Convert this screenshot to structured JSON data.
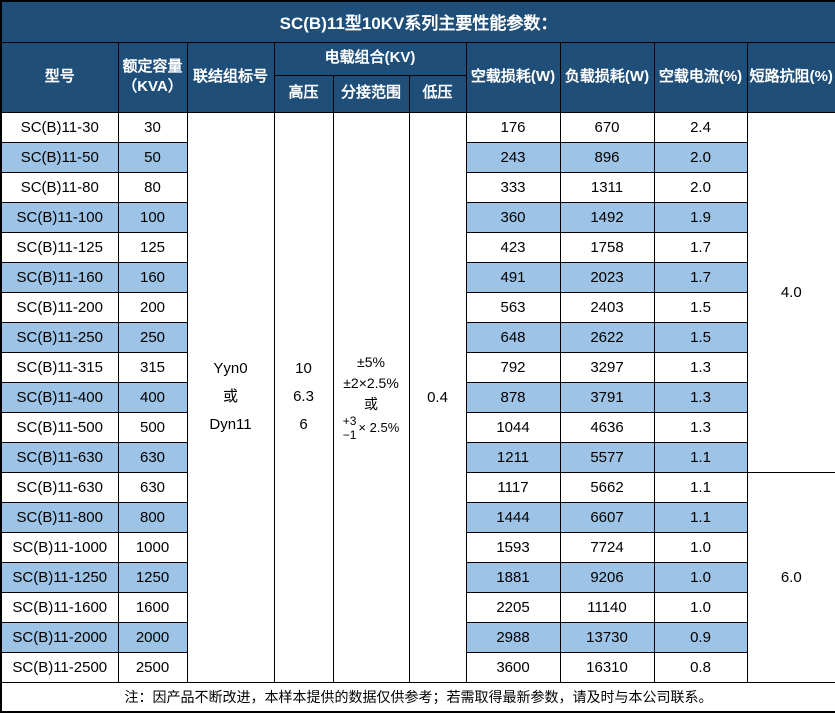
{
  "title": "SC(B)11型10KV系列主要性能参数：",
  "colors": {
    "header_bg": "#1F4E79",
    "alt_row_bg": "#9DC3E6",
    "border": "#000000",
    "header_text": "#FFFFFF"
  },
  "header": {
    "model": "型号",
    "capacity_line1": "额定容量",
    "capacity_line2": "（KVA）",
    "connection": "联结组标号",
    "load_combo": "电载组合(KV)",
    "hv": "高压",
    "tap_range": "分接范围",
    "lv": "低压",
    "no_load_loss": "空载损耗(W)",
    "load_loss": "负载损耗(W)",
    "no_load_current": "空载电流(%)",
    "impedance": "短路抗阻(%)"
  },
  "merged": {
    "connection_lines": [
      "Yyn0",
      "或",
      "Dyn11"
    ],
    "hv_lines": [
      "10",
      "6.3",
      "6"
    ],
    "tap_lines": [
      "±5%",
      "±2×2.5%",
      "或"
    ],
    "tap_stack_top": "+3",
    "tap_stack_bottom": "−1",
    "tap_stack_suffix": "× 2.5%",
    "lv_value": "0.4"
  },
  "impedance_groups": [
    {
      "value": "4.0",
      "rowspan": 12
    },
    {
      "value": "6.0",
      "rowspan": 7
    }
  ],
  "rows": [
    {
      "model": "SC(B)11-30",
      "kva": "30",
      "no_load_loss": "176",
      "load_loss": "670",
      "no_load_current": "2.4"
    },
    {
      "model": "SC(B)11-50",
      "kva": "50",
      "no_load_loss": "243",
      "load_loss": "896",
      "no_load_current": "2.0"
    },
    {
      "model": "SC(B)11-80",
      "kva": "80",
      "no_load_loss": "333",
      "load_loss": "1311",
      "no_load_current": "2.0"
    },
    {
      "model": "SC(B)11-100",
      "kva": "100",
      "no_load_loss": "360",
      "load_loss": "1492",
      "no_load_current": "1.9"
    },
    {
      "model": "SC(B)11-125",
      "kva": "125",
      "no_load_loss": "423",
      "load_loss": "1758",
      "no_load_current": "1.7"
    },
    {
      "model": "SC(B)11-160",
      "kva": "160",
      "no_load_loss": "491",
      "load_loss": "2023",
      "no_load_current": "1.7"
    },
    {
      "model": "SC(B)11-200",
      "kva": "200",
      "no_load_loss": "563",
      "load_loss": "2403",
      "no_load_current": "1.5"
    },
    {
      "model": "SC(B)11-250",
      "kva": "250",
      "no_load_loss": "648",
      "load_loss": "2622",
      "no_load_current": "1.5"
    },
    {
      "model": "SC(B)11-315",
      "kva": "315",
      "no_load_loss": "792",
      "load_loss": "3297",
      "no_load_current": "1.3"
    },
    {
      "model": "SC(B)11-400",
      "kva": "400",
      "no_load_loss": "878",
      "load_loss": "3791",
      "no_load_current": "1.3"
    },
    {
      "model": "SC(B)11-500",
      "kva": "500",
      "no_load_loss": "1044",
      "load_loss": "4636",
      "no_load_current": "1.3"
    },
    {
      "model": "SC(B)11-630",
      "kva": "630",
      "no_load_loss": "1211",
      "load_loss": "5577",
      "no_load_current": "1.1"
    },
    {
      "model": "SC(B)11-630",
      "kva": "630",
      "no_load_loss": "1117",
      "load_loss": "5662",
      "no_load_current": "1.1"
    },
    {
      "model": "SC(B)11-800",
      "kva": "800",
      "no_load_loss": "1444",
      "load_loss": "6607",
      "no_load_current": "1.1"
    },
    {
      "model": "SC(B)11-1000",
      "kva": "1000",
      "no_load_loss": "1593",
      "load_loss": "7724",
      "no_load_current": "1.0"
    },
    {
      "model": "SC(B)11-1250",
      "kva": "1250",
      "no_load_loss": "1881",
      "load_loss": "9206",
      "no_load_current": "1.0"
    },
    {
      "model": "SC(B)11-1600",
      "kva": "1600",
      "no_load_loss": "2205",
      "load_loss": "11140",
      "no_load_current": "1.0"
    },
    {
      "model": "SC(B)11-2000",
      "kva": "2000",
      "no_load_loss": "2988",
      "load_loss": "13730",
      "no_load_current": "0.9"
    },
    {
      "model": "SC(B)11-2500",
      "kva": "2500",
      "no_load_loss": "3600",
      "load_loss": "16310",
      "no_load_current": "0.8"
    }
  ],
  "footer_note": "注：因产品不断改进，本样本提供的数据仅供参考；若需取得最新参数，请及时与本公司联系。"
}
